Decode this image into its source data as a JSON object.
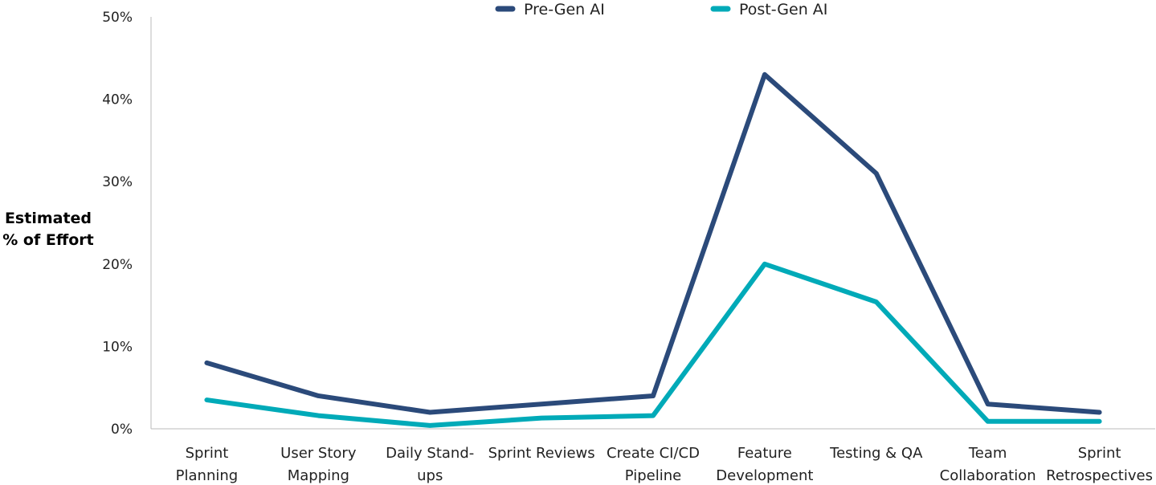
{
  "chart_data": {
    "type": "line",
    "ylabel": "Estimated % of Effort",
    "ylabel_lines": [
      "Estimated",
      "% of Effort"
    ],
    "ylim": [
      0,
      50
    ],
    "yticks": [
      "0%",
      "10%",
      "20%",
      "30%",
      "40%",
      "50%"
    ],
    "grid": false,
    "legend": "top-center",
    "categories": [
      [
        "Sprint",
        "Planning"
      ],
      [
        "User Story",
        "Mapping"
      ],
      [
        "Daily Stand-",
        "ups"
      ],
      [
        "Sprint Reviews"
      ],
      [
        "Create CI/CD",
        "Pipeline"
      ],
      [
        "Feature",
        "Development"
      ],
      [
        "Testing & QA"
      ],
      [
        "Team",
        "Collaboration"
      ],
      [
        "Sprint",
        "Retrospectives"
      ]
    ],
    "series": [
      {
        "name": "Pre-Gen AI",
        "color": "#2b4a7a",
        "values": [
          8,
          4,
          2,
          3,
          4,
          43,
          31,
          3,
          2
        ]
      },
      {
        "name": "Post-Gen AI",
        "color": "#00aab8",
        "values": [
          3.5,
          1.6,
          0.4,
          1.3,
          1.6,
          20,
          15.4,
          0.9,
          0.9
        ]
      }
    ]
  }
}
